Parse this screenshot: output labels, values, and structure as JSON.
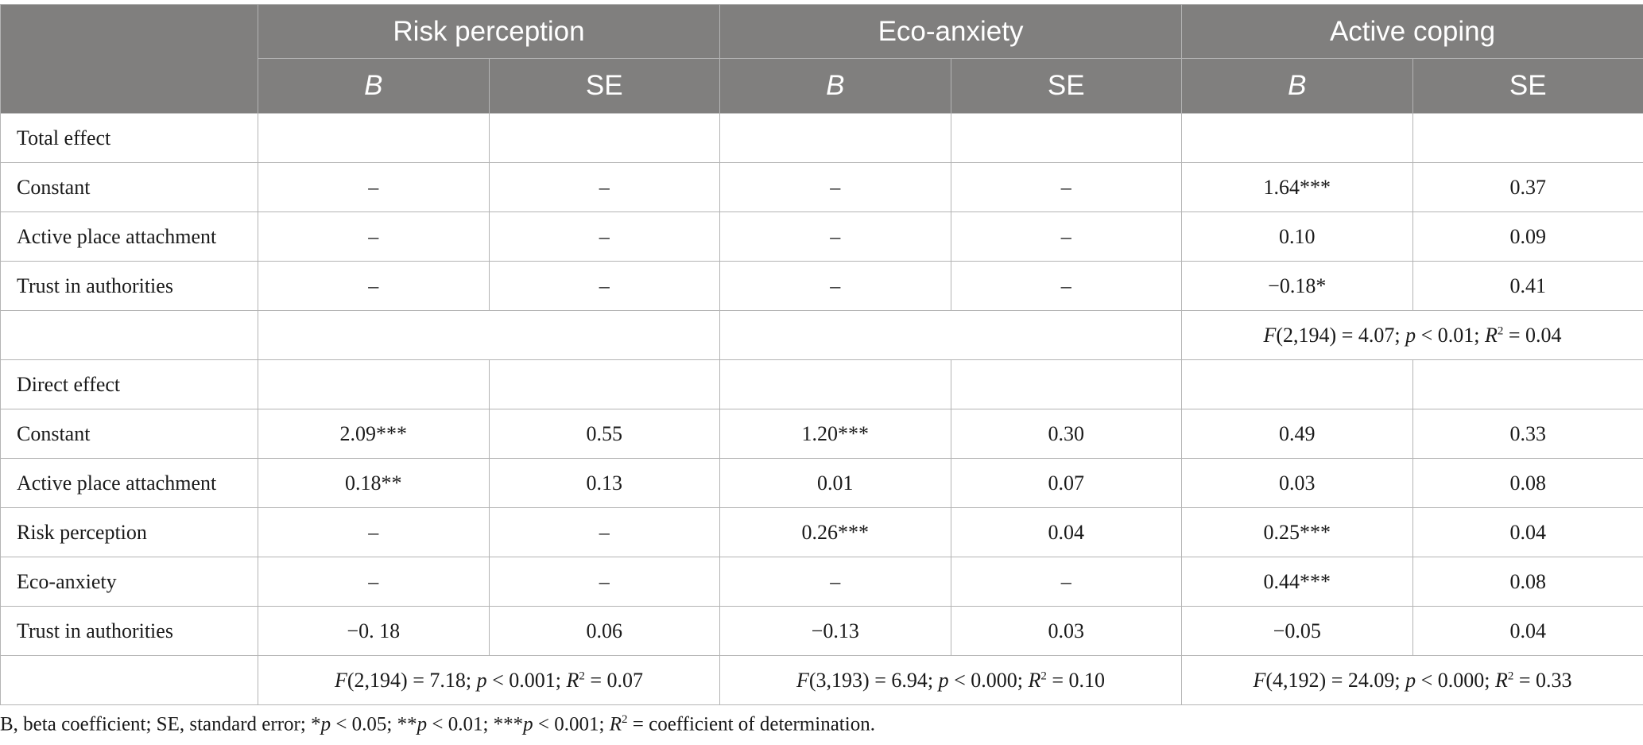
{
  "header": {
    "groups": [
      "Risk perception",
      "Eco-anxiety",
      "Active coping"
    ],
    "sub": [
      "B",
      "SE",
      "B",
      "SE",
      "B",
      "SE"
    ]
  },
  "rows": [
    {
      "label": "Total effect",
      "cells": [
        "",
        "",
        "",
        "",
        "",
        ""
      ]
    },
    {
      "label": "Constant",
      "cells": [
        "–",
        "–",
        "–",
        "–",
        "1.64***",
        "0.37"
      ]
    },
    {
      "label": "Active place attachment",
      "cells": [
        "–",
        "–",
        "–",
        "–",
        "0.10",
        "0.09"
      ]
    },
    {
      "label": "Trust in authorities",
      "cells": [
        "–",
        "–",
        "–",
        "–",
        "−0.18*",
        "0.41"
      ]
    },
    {
      "label": "",
      "fit": [
        "",
        "",
        "F(2,194) = 4.07; p < 0.01; R2 = 0.04"
      ]
    },
    {
      "label": "Direct effect",
      "cells": [
        "",
        "",
        "",
        "",
        "",
        ""
      ]
    },
    {
      "label": "Constant",
      "cells": [
        "2.09***",
        "0.55",
        "1.20***",
        "0.30",
        "0.49",
        "0.33"
      ]
    },
    {
      "label": "Active place attachment",
      "cells": [
        "0.18**",
        "0.13",
        "0.01",
        "0.07",
        "0.03",
        "0.08"
      ]
    },
    {
      "label": "Risk perception",
      "cells": [
        "–",
        "–",
        "0.26***",
        "0.04",
        "0.25***",
        "0.04"
      ]
    },
    {
      "label": "Eco-anxiety",
      "cells": [
        "–",
        "–",
        "–",
        "–",
        "0.44***",
        "0.08"
      ]
    },
    {
      "label": "Trust in authorities",
      "cells": [
        "−0. 18",
        "0.06",
        "−0.13",
        "0.03",
        "−0.05",
        "0.04"
      ]
    },
    {
      "label": "",
      "fit": [
        "F(2,194) = 7.18; p < 0.001; R2 = 0.07",
        "F(3,193) = 6.94; p < 0.000; R2 = 0.10",
        "F(4,192) = 24.09; p < 0.000; R2 = 0.33"
      ]
    }
  ],
  "footnote": "B, beta coefficient; SE, standard error; *p < 0.05; **p < 0.01; ***p < 0.001; R2 = coefficient of determination."
}
